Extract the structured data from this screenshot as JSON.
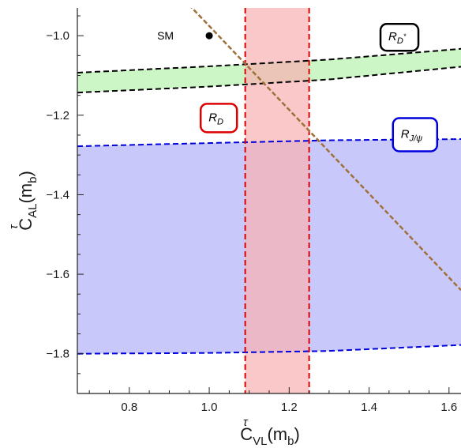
{
  "chart_data": {
    "type": "contour",
    "xlim": [
      0.67,
      1.63
    ],
    "ylim": [
      -1.9,
      -0.93
    ],
    "xticks": [
      0.8,
      1.0,
      1.2,
      1.4,
      1.6
    ],
    "xtick_labels": [
      "0.8",
      "1.0",
      "1.2",
      "1.4",
      "1.6"
    ],
    "yticks": [
      -1.8,
      -1.6,
      -1.4,
      -1.2,
      -1.0
    ],
    "ytick_labels": [
      "−1.8",
      "−1.6",
      "−1.4",
      "−1.2",
      "−1.0"
    ],
    "xlabel": {
      "main": "C",
      "sup": "τ",
      "sub": "VL",
      "arg": "(m",
      "arg_sub": "b",
      "arg_close": ")"
    },
    "ylabel": {
      "main": "C",
      "sup": "τ",
      "sub": "AL",
      "arg": "(m",
      "arg_sub": "b",
      "arg_close": ")"
    },
    "grid": false,
    "sm_point": {
      "x": 1.0,
      "y": -1.0,
      "label": "SM"
    },
    "regions": [
      {
        "name": "R_D*",
        "color": "#00c800",
        "fill": "#c8f5c0",
        "upper": [
          [
            0.67,
            -1.093
          ],
          [
            1.0,
            -1.077
          ],
          [
            1.3,
            -1.06
          ],
          [
            1.63,
            -1.033
          ]
        ],
        "lower": [
          [
            0.67,
            -1.143
          ],
          [
            1.0,
            -1.128
          ],
          [
            1.3,
            -1.11
          ],
          [
            1.63,
            -1.078
          ]
        ]
      },
      {
        "name": "R_J/psi",
        "color": "#0000dd",
        "fill": "#c8c8fa",
        "upper": [
          [
            0.67,
            -1.278
          ],
          [
            1.0,
            -1.27
          ],
          [
            1.3,
            -1.263
          ],
          [
            1.63,
            -1.26
          ]
        ],
        "lower": [
          [
            0.67,
            -1.8
          ],
          [
            1.0,
            -1.798
          ],
          [
            1.3,
            -1.793
          ],
          [
            1.63,
            -1.778
          ]
        ]
      },
      {
        "name": "R_D",
        "color": "#dd0000",
        "fill": "#f8b0b0",
        "xmin": 1.09,
        "xmax": 1.25
      }
    ],
    "combined_line": {
      "color": "#a0703a",
      "points": [
        [
          0.9,
          -0.87
        ],
        [
          1.63,
          -1.64
        ]
      ]
    },
    "labels": {
      "rdstar": {
        "base": "R",
        "sub": "D",
        "subsup": "*",
        "x": 1.476,
        "y": -1.004,
        "border": "#000000"
      },
      "rd": {
        "base": "R",
        "sub": "D",
        "x": 1.024,
        "y": -1.207,
        "border": "#dd0000"
      },
      "rjpsi": {
        "base": "R",
        "sub": "J/ψ",
        "x": 1.515,
        "y": -1.249,
        "border": "#0000dd"
      }
    }
  }
}
